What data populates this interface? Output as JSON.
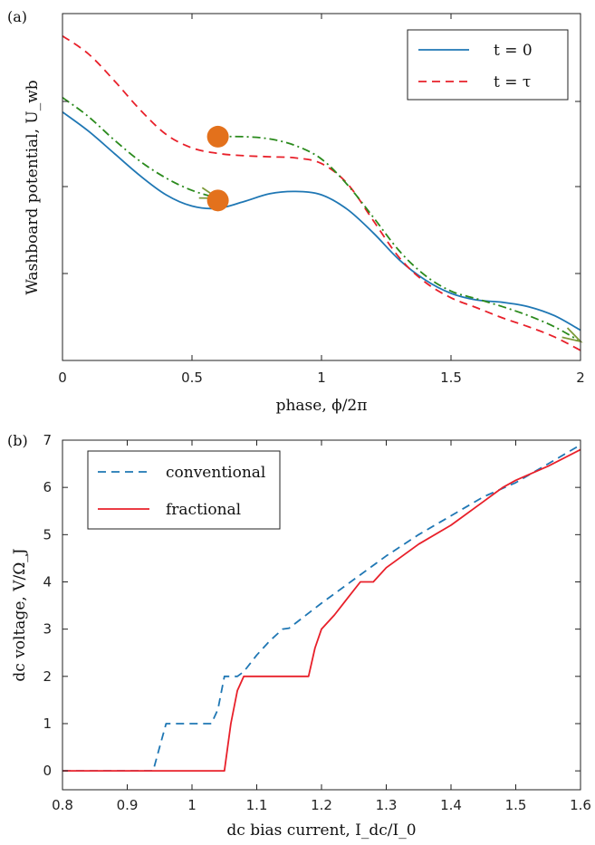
{
  "chart_data": [
    {
      "panel": "(a)",
      "type": "line",
      "xlabel": "phase, ϕ/2π",
      "ylabel": "Washboard potential, U_wb",
      "xlim": [
        0,
        2
      ],
      "ylim": [
        -2.9,
        0.2
      ],
      "xticks": [
        "0",
        "0.5",
        "1",
        "1.5",
        "2"
      ],
      "yticks_shown": false,
      "grid": false,
      "legend_position": "top-right",
      "series": [
        {
          "name": "t = 0",
          "color": "#1f77b4",
          "style": "solid",
          "x": [
            0,
            0.1,
            0.2,
            0.3,
            0.4,
            0.5,
            0.6,
            0.7,
            0.8,
            0.9,
            1.0,
            1.1,
            1.2,
            1.3,
            1.4,
            1.5,
            1.6,
            1.7,
            1.8,
            1.9,
            2.0
          ],
          "y": [
            -0.68,
            -0.85,
            -1.05,
            -1.25,
            -1.42,
            -1.52,
            -1.54,
            -1.48,
            -1.41,
            -1.39,
            -1.42,
            -1.55,
            -1.76,
            -2.0,
            -2.18,
            -2.3,
            -2.36,
            -2.38,
            -2.42,
            -2.5,
            -2.63
          ]
        },
        {
          "name": "t = τ",
          "color": "#e8202a",
          "style": "dashed",
          "x": [
            0,
            0.1,
            0.2,
            0.3,
            0.4,
            0.5,
            0.6,
            0.7,
            0.8,
            0.9,
            1.0,
            1.1,
            1.2,
            1.3,
            1.4,
            1.5,
            1.6,
            1.7,
            1.8,
            1.9,
            2.0
          ],
          "y": [
            0.0,
            -0.16,
            -0.4,
            -0.66,
            -0.88,
            -1.0,
            -1.05,
            -1.07,
            -1.08,
            -1.09,
            -1.14,
            -1.32,
            -1.65,
            -1.98,
            -2.2,
            -2.34,
            -2.43,
            -2.52,
            -2.6,
            -2.69,
            -2.81
          ]
        },
        {
          "name": "",
          "color": "#2a8a1c",
          "style": "dashdot",
          "x": [
            0,
            0.1,
            0.2,
            0.3,
            0.4,
            0.5,
            0.6
          ],
          "y": [
            -0.55,
            -0.72,
            -0.93,
            -1.12,
            -1.27,
            -1.38,
            -1.45
          ]
        },
        {
          "name": "",
          "color": "#2a8a1c",
          "style": "dashdot",
          "x": [
            0.6,
            0.7,
            0.8,
            0.9,
            1.0,
            1.1,
            1.2,
            1.3,
            1.4,
            1.5,
            1.6,
            1.7,
            1.8,
            1.9,
            2.0
          ],
          "y": [
            -0.9,
            -0.9,
            -0.92,
            -0.98,
            -1.1,
            -1.33,
            -1.62,
            -1.92,
            -2.14,
            -2.28,
            -2.35,
            -2.42,
            -2.5,
            -2.6,
            -2.73
          ]
        }
      ],
      "markers": [
        {
          "x": 0.6,
          "y": -0.9,
          "color": "#e3711c"
        },
        {
          "x": 0.6,
          "y": -1.47,
          "color": "#e3711c"
        }
      ]
    },
    {
      "panel": "(b)",
      "type": "line",
      "xlabel": "dc bias current, I_dc/I_0",
      "ylabel": "dc voltage, V/Ω_J",
      "xlim": [
        0.8,
        1.6
      ],
      "ylim": [
        -0.4,
        7
      ],
      "xticks": [
        "0.8",
        "0.9",
        "1",
        "1.1",
        "1.2",
        "1.3",
        "1.4",
        "1.5",
        "1.6"
      ],
      "yticks": [
        "0",
        "1",
        "2",
        "3",
        "4",
        "5",
        "6",
        "7"
      ],
      "grid": false,
      "legend_position": "top-left",
      "series": [
        {
          "name": "conventional",
          "color": "#1f77b4",
          "style": "dashed",
          "x": [
            0.8,
            0.94,
            0.95,
            0.96,
            1.03,
            1.04,
            1.05,
            1.07,
            1.08,
            1.1,
            1.12,
            1.14,
            1.15,
            1.2,
            1.25,
            1.3,
            1.35,
            1.4,
            1.45,
            1.5,
            1.55,
            1.6
          ],
          "y": [
            0,
            0,
            0.5,
            1,
            1,
            1.3,
            2,
            2,
            2.1,
            2.45,
            2.75,
            3,
            3.02,
            3.55,
            4.05,
            4.55,
            5.0,
            5.4,
            5.8,
            6.1,
            6.5,
            6.9
          ]
        },
        {
          "name": "fractional",
          "color": "#e8202a",
          "style": "solid",
          "x": [
            0.8,
            1.05,
            1.06,
            1.07,
            1.08,
            1.18,
            1.19,
            1.2,
            1.22,
            1.24,
            1.26,
            1.28,
            1.3,
            1.35,
            1.4,
            1.45,
            1.47,
            1.48,
            1.5,
            1.55,
            1.6
          ],
          "y": [
            0,
            0,
            1,
            1.7,
            2,
            2,
            2.6,
            3.0,
            3.3,
            3.65,
            4.0,
            4.0,
            4.3,
            4.8,
            5.2,
            5.7,
            5.9,
            6.0,
            6.15,
            6.45,
            6.8
          ]
        }
      ]
    }
  ]
}
